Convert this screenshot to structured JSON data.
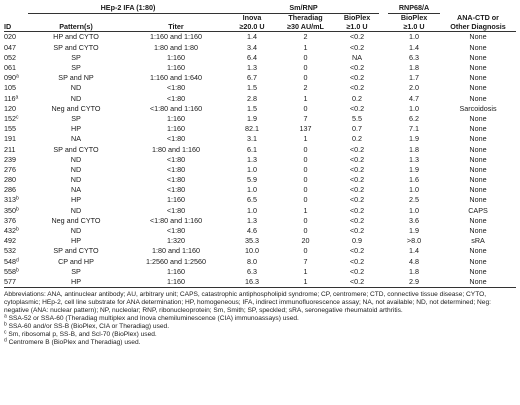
{
  "headers": {
    "hep2_group": "HEp-2 IFA (1:80)",
    "smrnp_group": "Sm/RNP",
    "rnp68_group": "RNP68/A",
    "id": "ID",
    "pattern": "Pattern(s)",
    "titer": "Titer",
    "inova": [
      "Inova",
      "≥20.0 U"
    ],
    "theradiag": [
      "Theradiag",
      "≥30 AU/mL"
    ],
    "bioplex_sm": [
      "BioPlex",
      "≥1.0 U"
    ],
    "bioplex_rnp": [
      "BioPlex",
      "≥1.0 U"
    ],
    "ana_ctd": [
      "ANA-CTD or",
      "Other Diagnosis"
    ]
  },
  "rows": [
    {
      "id": "020",
      "sup": "",
      "pattern": "HP and CYTO",
      "titer": "1:160 and 1:160",
      "inova": "1.4",
      "theradiag": "2",
      "bioplex_sm": "<0.2",
      "bioplex_rnp": "1.0",
      "dx": "None"
    },
    {
      "id": "047",
      "sup": "",
      "pattern": "SP and CYTO",
      "titer": "1:80 and 1:80",
      "inova": "3.4",
      "theradiag": "1",
      "bioplex_sm": "<0.2",
      "bioplex_rnp": "1.4",
      "dx": "None"
    },
    {
      "id": "052",
      "sup": "",
      "pattern": "SP",
      "titer": "1:160",
      "inova": "6.4",
      "theradiag": "0",
      "bioplex_sm": "NA",
      "bioplex_rnp": "6.3",
      "dx": "None"
    },
    {
      "id": "061",
      "sup": "",
      "pattern": "SP",
      "titer": "1:160",
      "inova": "1.3",
      "theradiag": "0",
      "bioplex_sm": "<0.2",
      "bioplex_rnp": "1.8",
      "dx": "None"
    },
    {
      "id": "090",
      "sup": "a",
      "pattern": "SP and NP",
      "titer": "1:160 and 1:640",
      "inova": "6.7",
      "theradiag": "0",
      "bioplex_sm": "<0.2",
      "bioplex_rnp": "1.7",
      "dx": "None"
    },
    {
      "id": "105",
      "sup": "",
      "pattern": "ND",
      "titer": "<1:80",
      "inova": "1.5",
      "theradiag": "2",
      "bioplex_sm": "<0.2",
      "bioplex_rnp": "2.0",
      "dx": "None"
    },
    {
      "id": "116",
      "sup": "a",
      "pattern": "ND",
      "titer": "<1:80",
      "inova": "2.8",
      "theradiag": "1",
      "bioplex_sm": "0.2",
      "bioplex_rnp": "4.7",
      "dx": "None"
    },
    {
      "id": "120",
      "sup": "",
      "pattern": "Neg and CYTO",
      "titer": "<1:80 and 1:160",
      "inova": "1.5",
      "theradiag": "0",
      "bioplex_sm": "<0.2",
      "bioplex_rnp": "1.0",
      "dx": "Sarcoidosis"
    },
    {
      "id": "152",
      "sup": "c",
      "pattern": "SP",
      "titer": "1:160",
      "inova": "1.9",
      "theradiag": "7",
      "bioplex_sm": "5.5",
      "bioplex_rnp": "6.2",
      "dx": "None"
    },
    {
      "id": "155",
      "sup": "",
      "pattern": "HP",
      "titer": "1:160",
      "inova": "82.1",
      "theradiag": "137",
      "bioplex_sm": "0.7",
      "bioplex_rnp": "7.1",
      "dx": "None"
    },
    {
      "id": "191",
      "sup": "",
      "pattern": "NA",
      "titer": "<1:80",
      "inova": "3.1",
      "theradiag": "1",
      "bioplex_sm": "0.2",
      "bioplex_rnp": "1.9",
      "dx": "None"
    },
    {
      "id": "211",
      "sup": "",
      "pattern": "SP and CYTO",
      "titer": "1:80 and 1:160",
      "inova": "6.1",
      "theradiag": "0",
      "bioplex_sm": "<0.2",
      "bioplex_rnp": "1.8",
      "dx": "None"
    },
    {
      "id": "239",
      "sup": "",
      "pattern": "ND",
      "titer": "<1:80",
      "inova": "1.3",
      "theradiag": "0",
      "bioplex_sm": "<0.2",
      "bioplex_rnp": "1.3",
      "dx": "None"
    },
    {
      "id": "276",
      "sup": "",
      "pattern": "ND",
      "titer": "<1:80",
      "inova": "1.0",
      "theradiag": "0",
      "bioplex_sm": "<0.2",
      "bioplex_rnp": "1.9",
      "dx": "None"
    },
    {
      "id": "280",
      "sup": "",
      "pattern": "ND",
      "titer": "<1:80",
      "inova": "5.9",
      "theradiag": "0",
      "bioplex_sm": "<0.2",
      "bioplex_rnp": "1.6",
      "dx": "None"
    },
    {
      "id": "286",
      "sup": "",
      "pattern": "NA",
      "titer": "<1:80",
      "inova": "1.0",
      "theradiag": "0",
      "bioplex_sm": "<0.2",
      "bioplex_rnp": "1.0",
      "dx": "None"
    },
    {
      "id": "313",
      "sup": "b",
      "pattern": "HP",
      "titer": "1:160",
      "inova": "6.5",
      "theradiag": "0",
      "bioplex_sm": "<0.2",
      "bioplex_rnp": "2.5",
      "dx": "None"
    },
    {
      "id": "350",
      "sup": "b",
      "pattern": "ND",
      "titer": "<1:80",
      "inova": "1.0",
      "theradiag": "1",
      "bioplex_sm": "<0.2",
      "bioplex_rnp": "1.0",
      "dx": "CAPS"
    },
    {
      "id": "376",
      "sup": "",
      "pattern": "Neg and CYTO",
      "titer": "<1:80 and 1:160",
      "inova": "1.3",
      "theradiag": "0",
      "bioplex_sm": "<0.2",
      "bioplex_rnp": "3.6",
      "dx": "None"
    },
    {
      "id": "432",
      "sup": "b",
      "pattern": "ND",
      "titer": "<1:80",
      "inova": "4.6",
      "theradiag": "0",
      "bioplex_sm": "<0.2",
      "bioplex_rnp": "1.9",
      "dx": "None"
    },
    {
      "id": "492",
      "sup": "",
      "pattern": "HP",
      "titer": "1:320",
      "inova": "35.3",
      "theradiag": "20",
      "bioplex_sm": "0.9",
      "bioplex_rnp": ">8.0",
      "dx": "sRA"
    },
    {
      "id": "532",
      "sup": "",
      "pattern": "SP and CYTO",
      "titer": "1:80 and 1:160",
      "inova": "10.0",
      "theradiag": "0",
      "bioplex_sm": "<0.2",
      "bioplex_rnp": "1.4",
      "dx": "None"
    },
    {
      "id": "548",
      "sup": "d",
      "pattern": "CP and HP",
      "titer": "1:2560 and 1:2560",
      "inova": "8.0",
      "theradiag": "7",
      "bioplex_sm": "<0.2",
      "bioplex_rnp": "4.8",
      "dx": "None"
    },
    {
      "id": "558",
      "sup": "b",
      "pattern": "SP",
      "titer": "1:160",
      "inova": "6.3",
      "theradiag": "1",
      "bioplex_sm": "<0.2",
      "bioplex_rnp": "1.8",
      "dx": "None"
    },
    {
      "id": "577",
      "sup": "",
      "pattern": "HP",
      "titer": "1:160",
      "inova": "16.3",
      "theradiag": "1",
      "bioplex_sm": "<0.2",
      "bioplex_rnp": "2.9",
      "dx": "None"
    }
  ],
  "footnotes": {
    "abbreviations": "Abbreviations: ANA, antinuclear antibody; AU, arbitrary unit; CAPS, catastrophic antiphospholipid syndrome; CP, centromere; CTD, connective tissue disease; CYTO, cytoplasmic; HEp-2, cell line substrate for ANA determination; HP, homogeneous; IFA, indirect immunofluorescence assay; NA, not available; ND, not determined; Neg: negative (ANA: nuclear pattern); NP, nucleolar; RNP, ribonucleoprotein; Sm, Smith; SP, speckled; sRA, seronegative rheumatoid arthritis.",
    "notes": [
      {
        "mark": "a",
        "text": "SSA-52 or SSA-60 (Theradiag multiplex and Inova chemiluminescence (CIA) immunoassays) used."
      },
      {
        "mark": "b",
        "text": "SSA-60 and/or SS-B (BioPlex, CIA or Theradiag) used."
      },
      {
        "mark": "c",
        "text": "Sm, ribosomal p, SS-B, and Scl-70 (BioPlex) used."
      },
      {
        "mark": "d",
        "text": "Centromere B (BioPlex and Theradiag) used."
      }
    ]
  }
}
